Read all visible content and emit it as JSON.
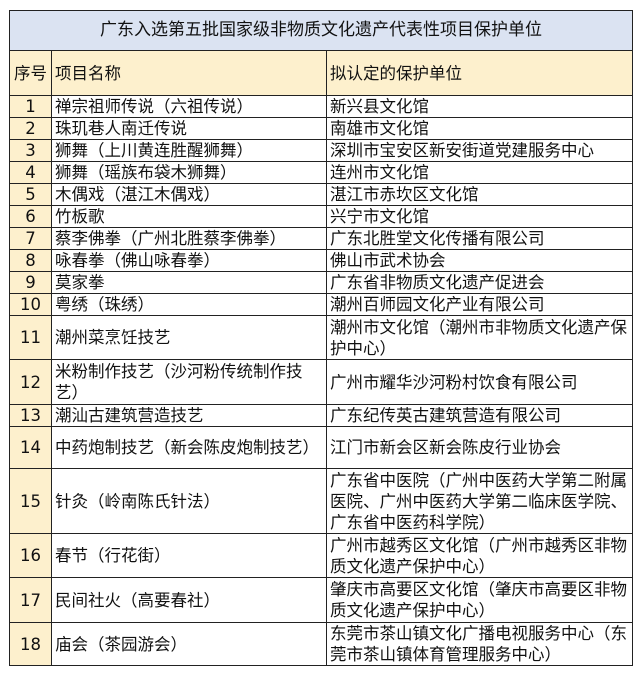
{
  "title": "广东入选第五批国家级非物质文化遗产代表性项目保护单位",
  "headers": {
    "seq": "序号",
    "name": "项目名称",
    "unit": "拟认定的保护单位"
  },
  "colors": {
    "title_bg": "#dbe3f2",
    "header_bg": "#fdf0cd"
  },
  "rows": [
    {
      "seq": "1",
      "name": "禅宗祖师传说（六祖传说）",
      "unit": "新兴县文化馆"
    },
    {
      "seq": "2",
      "name": "珠玑巷人南迁传说",
      "unit": "南雄市文化馆"
    },
    {
      "seq": "3",
      "name": "狮舞（上川黄连胜醒狮舞）",
      "unit": "深圳市宝安区新安街道党建服务中心"
    },
    {
      "seq": "4",
      "name": "狮舞（瑶族布袋木狮舞）",
      "unit": "连州市文化馆"
    },
    {
      "seq": "5",
      "name": "木偶戏（湛江木偶戏）",
      "unit": "湛江市赤坎区文化馆"
    },
    {
      "seq": "6",
      "name": "竹板歌",
      "unit": "兴宁市文化馆"
    },
    {
      "seq": "7",
      "name": "蔡李佛拳（广州北胜蔡李佛拳）",
      "unit": "广东北胜堂文化传播有限公司"
    },
    {
      "seq": "8",
      "name": "咏春拳（佛山咏春拳）",
      "unit": "佛山市武术协会"
    },
    {
      "seq": "9",
      "name": "莫家拳",
      "unit": "广东省非物质文化遗产促进会"
    },
    {
      "seq": "10",
      "name": "粤绣（珠绣）",
      "unit": "潮州百师园文化产业有限公司"
    },
    {
      "seq": "11",
      "name": "潮州菜烹饪技艺",
      "unit": "潮州市文化馆（潮州市非物质文化遗产保护中心）"
    },
    {
      "seq": "12",
      "name": "米粉制作技艺（沙河粉传统制作技艺）",
      "unit": "广州市耀华沙河粉村饮食有限公司"
    },
    {
      "seq": "13",
      "name": "潮汕古建筑营造技艺",
      "unit": "广东纪传英古建筑营造有限公司"
    },
    {
      "seq": "14",
      "name": "中药炮制技艺（新会陈皮炮制技艺）",
      "unit": "江门市新会区新会陈皮行业协会"
    },
    {
      "seq": "15",
      "name": "针灸（岭南陈氏针法）",
      "unit": "广东省中医院（广州中医药大学第二附属医院、广州中医药大学第二临床医学院、广东省中医药科学院）"
    },
    {
      "seq": "16",
      "name": "春节（行花街）",
      "unit": "广州市越秀区文化馆（广州市越秀区非物质文化遗产保护中心）"
    },
    {
      "seq": "17",
      "name": "民间社火（高要春社）",
      "unit": "肇庆市高要区文化馆（肇庆市高要区非物质文化遗产保护中心）"
    },
    {
      "seq": "18",
      "name": "庙会（茶园游会）",
      "unit": "东莞市茶山镇文化广播电视服务中心（东莞市茶山镇体育管理服务中心）"
    }
  ]
}
